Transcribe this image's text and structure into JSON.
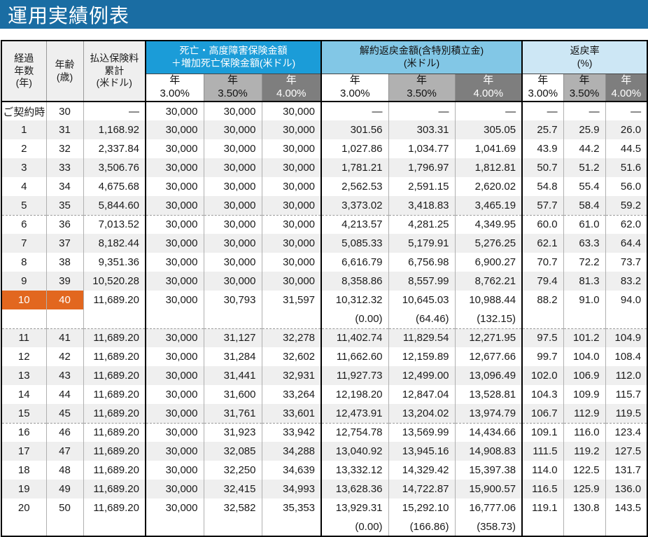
{
  "title": "運用実績例表",
  "colors": {
    "title_bar": "#1a6da3",
    "death_header": "#1b9cd8",
    "surrender_header": "#82c7e6",
    "ratio_header": "#cde7f5",
    "rate_mid": "#b1b1b1",
    "rate_dark": "#7e7e7e",
    "highlight": "#e2671f",
    "stripe": "#efefef"
  },
  "table": {
    "col_headers": {
      "elapsed_years": "経過\n年数\n(年)",
      "age": "年齢\n(歳)",
      "premium_total": "払込保険料\n累計\n(米ドル)",
      "death_group": "死亡・高度障害保険金額\n＋増加死亡保険金額(米ドル)",
      "surrender_group": "解約返戻金額(含特別積立金)\n(米ドル)",
      "ratio_group": "返戻率\n(%)"
    },
    "rate_headers": [
      "年\n3.00%",
      "年\n3.50%",
      "年\n4.00%"
    ],
    "rows": [
      {
        "year": "ご契約時",
        "age": "30",
        "premium": "—",
        "death": [
          "30,000",
          "30,000",
          "30,000"
        ],
        "surrender": [
          "—",
          "—",
          "—"
        ],
        "ratio": [
          "—",
          "—",
          "—"
        ],
        "stripe": false,
        "highlight": false,
        "dashed": false,
        "sub": null
      },
      {
        "year": "1",
        "age": "31",
        "premium": "1,168.92",
        "death": [
          "30,000",
          "30,000",
          "30,000"
        ],
        "surrender": [
          "301.56",
          "303.31",
          "305.05"
        ],
        "ratio": [
          "25.7",
          "25.9",
          "26.0"
        ],
        "stripe": true,
        "highlight": false,
        "dashed": false,
        "sub": null
      },
      {
        "year": "2",
        "age": "32",
        "premium": "2,337.84",
        "death": [
          "30,000",
          "30,000",
          "30,000"
        ],
        "surrender": [
          "1,027.86",
          "1,034.77",
          "1,041.69"
        ],
        "ratio": [
          "43.9",
          "44.2",
          "44.5"
        ],
        "stripe": false,
        "highlight": false,
        "dashed": false,
        "sub": null
      },
      {
        "year": "3",
        "age": "33",
        "premium": "3,506.76",
        "death": [
          "30,000",
          "30,000",
          "30,000"
        ],
        "surrender": [
          "1,781.21",
          "1,796.97",
          "1,812.81"
        ],
        "ratio": [
          "50.7",
          "51.2",
          "51.6"
        ],
        "stripe": true,
        "highlight": false,
        "dashed": false,
        "sub": null
      },
      {
        "year": "4",
        "age": "34",
        "premium": "4,675.68",
        "death": [
          "30,000",
          "30,000",
          "30,000"
        ],
        "surrender": [
          "2,562.53",
          "2,591.15",
          "2,620.02"
        ],
        "ratio": [
          "54.8",
          "55.4",
          "56.0"
        ],
        "stripe": false,
        "highlight": false,
        "dashed": false,
        "sub": null
      },
      {
        "year": "5",
        "age": "35",
        "premium": "5,844.60",
        "death": [
          "30,000",
          "30,000",
          "30,000"
        ],
        "surrender": [
          "3,373.02",
          "3,418.83",
          "3,465.19"
        ],
        "ratio": [
          "57.7",
          "58.4",
          "59.2"
        ],
        "stripe": true,
        "highlight": false,
        "dashed": true,
        "sub": null
      },
      {
        "year": "6",
        "age": "36",
        "premium": "7,013.52",
        "death": [
          "30,000",
          "30,000",
          "30,000"
        ],
        "surrender": [
          "4,213.57",
          "4,281.25",
          "4,349.95"
        ],
        "ratio": [
          "60.0",
          "61.0",
          "62.0"
        ],
        "stripe": false,
        "highlight": false,
        "dashed": false,
        "sub": null
      },
      {
        "year": "7",
        "age": "37",
        "premium": "8,182.44",
        "death": [
          "30,000",
          "30,000",
          "30,000"
        ],
        "surrender": [
          "5,085.33",
          "5,179.91",
          "5,276.25"
        ],
        "ratio": [
          "62.1",
          "63.3",
          "64.4"
        ],
        "stripe": true,
        "highlight": false,
        "dashed": false,
        "sub": null
      },
      {
        "year": "8",
        "age": "38",
        "premium": "9,351.36",
        "death": [
          "30,000",
          "30,000",
          "30,000"
        ],
        "surrender": [
          "6,616.79",
          "6,756.98",
          "6,900.27"
        ],
        "ratio": [
          "70.7",
          "72.2",
          "73.7"
        ],
        "stripe": false,
        "highlight": false,
        "dashed": false,
        "sub": null
      },
      {
        "year": "9",
        "age": "39",
        "premium": "10,520.28",
        "death": [
          "30,000",
          "30,000",
          "30,000"
        ],
        "surrender": [
          "8,358.86",
          "8,557.99",
          "8,762.21"
        ],
        "ratio": [
          "79.4",
          "81.3",
          "83.2"
        ],
        "stripe": true,
        "highlight": false,
        "dashed": false,
        "sub": null
      },
      {
        "year": "10",
        "age": "40",
        "premium": "11,689.20",
        "death": [
          "30,000",
          "30,793",
          "31,597"
        ],
        "surrender": [
          "10,312.32",
          "10,645.03",
          "10,988.44"
        ],
        "ratio": [
          "88.2",
          "91.0",
          "94.0"
        ],
        "stripe": false,
        "highlight": true,
        "dashed": true,
        "sub": [
          "(0.00)",
          "(64.46)",
          "(132.15)"
        ]
      },
      {
        "year": "11",
        "age": "41",
        "premium": "11,689.20",
        "death": [
          "30,000",
          "31,127",
          "32,278"
        ],
        "surrender": [
          "11,402.74",
          "11,829.54",
          "12,271.95"
        ],
        "ratio": [
          "97.5",
          "101.2",
          "104.9"
        ],
        "stripe": true,
        "highlight": false,
        "dashed": false,
        "sub": null
      },
      {
        "year": "12",
        "age": "42",
        "premium": "11,689.20",
        "death": [
          "30,000",
          "31,284",
          "32,602"
        ],
        "surrender": [
          "11,662.60",
          "12,159.89",
          "12,677.66"
        ],
        "ratio": [
          "99.7",
          "104.0",
          "108.4"
        ],
        "stripe": false,
        "highlight": false,
        "dashed": false,
        "sub": null
      },
      {
        "year": "13",
        "age": "43",
        "premium": "11,689.20",
        "death": [
          "30,000",
          "31,441",
          "32,931"
        ],
        "surrender": [
          "11,927.73",
          "12,499.00",
          "13,096.49"
        ],
        "ratio": [
          "102.0",
          "106.9",
          "112.0"
        ],
        "stripe": true,
        "highlight": false,
        "dashed": false,
        "sub": null
      },
      {
        "year": "14",
        "age": "44",
        "premium": "11,689.20",
        "death": [
          "30,000",
          "31,600",
          "33,264"
        ],
        "surrender": [
          "12,198.20",
          "12,847.04",
          "13,528.81"
        ],
        "ratio": [
          "104.3",
          "109.9",
          "115.7"
        ],
        "stripe": false,
        "highlight": false,
        "dashed": false,
        "sub": null
      },
      {
        "year": "15",
        "age": "45",
        "premium": "11,689.20",
        "death": [
          "30,000",
          "31,761",
          "33,601"
        ],
        "surrender": [
          "12,473.91",
          "13,204.02",
          "13,974.79"
        ],
        "ratio": [
          "106.7",
          "112.9",
          "119.5"
        ],
        "stripe": true,
        "highlight": false,
        "dashed": true,
        "sub": null
      },
      {
        "year": "16",
        "age": "46",
        "premium": "11,689.20",
        "death": [
          "30,000",
          "31,923",
          "33,942"
        ],
        "surrender": [
          "12,754.78",
          "13,569.99",
          "14,434.66"
        ],
        "ratio": [
          "109.1",
          "116.0",
          "123.4"
        ],
        "stripe": false,
        "highlight": false,
        "dashed": false,
        "sub": null
      },
      {
        "year": "17",
        "age": "47",
        "premium": "11,689.20",
        "death": [
          "30,000",
          "32,085",
          "34,288"
        ],
        "surrender": [
          "13,040.92",
          "13,945.16",
          "14,908.83"
        ],
        "ratio": [
          "111.5",
          "119.2",
          "127.5"
        ],
        "stripe": true,
        "highlight": false,
        "dashed": false,
        "sub": null
      },
      {
        "year": "18",
        "age": "48",
        "premium": "11,689.20",
        "death": [
          "30,000",
          "32,250",
          "34,639"
        ],
        "surrender": [
          "13,332.12",
          "14,329.42",
          "15,397.38"
        ],
        "ratio": [
          "114.0",
          "122.5",
          "131.7"
        ],
        "stripe": false,
        "highlight": false,
        "dashed": false,
        "sub": null
      },
      {
        "year": "19",
        "age": "49",
        "premium": "11,689.20",
        "death": [
          "30,000",
          "32,415",
          "34,993"
        ],
        "surrender": [
          "13,628.36",
          "14,722.87",
          "15,900.57"
        ],
        "ratio": [
          "116.5",
          "125.9",
          "136.0"
        ],
        "stripe": true,
        "highlight": false,
        "dashed": false,
        "sub": null
      },
      {
        "year": "20",
        "age": "50",
        "premium": "11,689.20",
        "death": [
          "30,000",
          "32,582",
          "35,353"
        ],
        "surrender": [
          "13,929.31",
          "15,292.10",
          "16,777.06"
        ],
        "ratio": [
          "119.1",
          "130.8",
          "143.5"
        ],
        "stripe": false,
        "highlight": false,
        "dashed": false,
        "sub": [
          "(0.00)",
          "(166.86)",
          "(358.73)"
        ]
      }
    ]
  }
}
